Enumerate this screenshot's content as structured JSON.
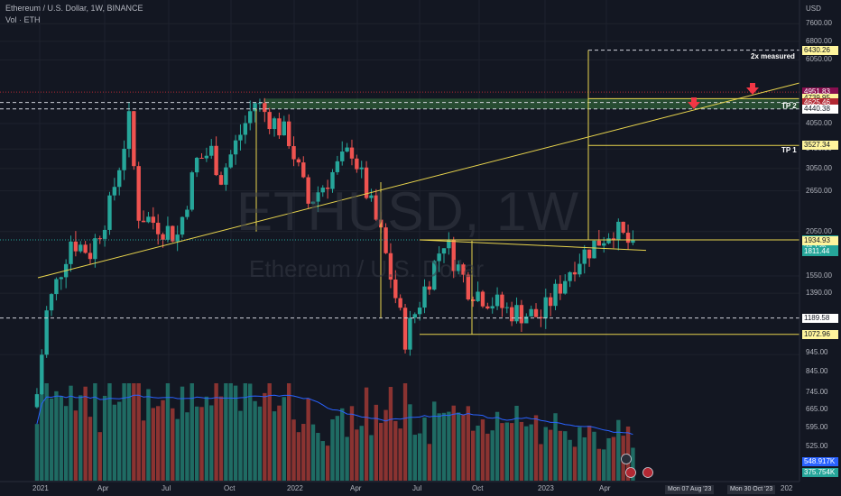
{
  "header": {
    "title": "Ethereum / U.S. Dollar, 1W, BINANCE",
    "volume": "Vol · ETH"
  },
  "watermark": {
    "symbol": "ETHUSD, 1W",
    "name": "Ethereum / U.S. Dollar"
  },
  "axis": {
    "currency": "USD",
    "y_ticks": [
      "7600.00",
      "6800.00",
      "6050.00",
      "4050.00",
      "3450.00",
      "3050.00",
      "2650.00",
      "2050.00",
      "1550.00",
      "1390.00",
      "945.00",
      "845.00",
      "745.00",
      "665.00",
      "595.00",
      "525.00"
    ],
    "x_ticks": [
      "2021",
      "Apr",
      "Jul",
      "Oct",
      "2022",
      "Apr",
      "Jul",
      "Oct",
      "2023",
      "Apr",
      "202"
    ],
    "x_badges": [
      "Mon 07 Aug '23",
      "Mon 30 Oct '23"
    ]
  },
  "annotations": {
    "measured": "2x measured",
    "tp2": "TP 2",
    "tp1": "TP 1"
  },
  "price_labels": [
    {
      "text": "6430.26",
      "bg": "#fff59d",
      "fg": "#131722"
    },
    {
      "text": "4951.83",
      "bg": "#880e4f",
      "fg": "#ffffff"
    },
    {
      "text": "4739.95",
      "bg": "#fff59d",
      "fg": "#131722"
    },
    {
      "text": "4625.46",
      "bg": "#b22833",
      "fg": "#ffffff"
    },
    {
      "text": "4440.38",
      "bg": "#ffffff",
      "fg": "#131722"
    },
    {
      "text": "3527.34",
      "bg": "#fff59d",
      "fg": "#131722"
    },
    {
      "text": "1944.96",
      "bg": "#26a69a",
      "fg": "#ffffff"
    },
    {
      "text": "2d 13h",
      "bg": "#26a69a",
      "fg": "#ffffff"
    },
    {
      "text": "1934.93",
      "bg": "#fff59d",
      "fg": "#131722"
    },
    {
      "text": "1811.44",
      "bg": "#26a69a",
      "fg": "#ffffff"
    },
    {
      "text": "1189.58",
      "bg": "#ffffff",
      "fg": "#131722"
    },
    {
      "text": "1072.96",
      "bg": "#fff59d",
      "fg": "#131722"
    },
    {
      "text": "548.917K",
      "bg": "#2962ff",
      "fg": "#ffffff"
    },
    {
      "text": "375.754K",
      "bg": "#26a69a",
      "fg": "#ffffff"
    }
  ],
  "colors": {
    "background": "#131722",
    "up": "#26a69a",
    "down": "#ef5350",
    "drawing": "#e8d44d",
    "volume_ma": "#2962ff",
    "tp2_zone": "#4caf50"
  },
  "chart_data": {
    "type": "candlestick",
    "title": "Ethereum / U.S. Dollar, 1W, BINANCE",
    "price_scale": "log",
    "ylim": [
      480,
      8400
    ],
    "x": [
      "2021",
      "Apr",
      "Jul",
      "Oct",
      "2022",
      "Apr",
      "Jul",
      "Oct",
      "2023",
      "Apr"
    ],
    "close_path": [
      [
        "2020-12-28",
        737
      ],
      [
        "2021-01-11",
        1230
      ],
      [
        "2021-02-15",
        1950
      ],
      [
        "2021-03-15",
        1800
      ],
      [
        "2021-04-12",
        2400
      ],
      [
        "2021-05-10",
        4100
      ],
      [
        "2021-05-24",
        2300
      ],
      [
        "2021-07-19",
        2000
      ],
      [
        "2021-08-16",
        3200
      ],
      [
        "2021-09-06",
        3400
      ],
      [
        "2021-09-20",
        2900
      ],
      [
        "2021-11-08",
        4650
      ],
      [
        "2021-12-27",
        3700
      ],
      [
        "2022-01-24",
        2450
      ],
      [
        "2022-03-28",
        3450
      ],
      [
        "2022-05-09",
        2000
      ],
      [
        "2022-06-13",
        1050
      ],
      [
        "2022-08-08",
        1950
      ],
      [
        "2022-09-12",
        1450
      ],
      [
        "2022-11-07",
        1250
      ],
      [
        "2022-12-26",
        1200
      ],
      [
        "2023-02-13",
        1700
      ],
      [
        "2023-04-10",
        2100
      ],
      [
        "2023-05-08",
        1850
      ]
    ],
    "last_close": 1944.96,
    "horizontal_levels": [
      4951.83,
      4739.95,
      4625.46,
      4440.38,
      3527.34,
      1934.93,
      1189.58,
      1072.96
    ],
    "measured_target": 6430.26,
    "tp2_zone": [
      4440.38,
      4739.95
    ],
    "volume": {
      "ma_last": 548917,
      "last": 375754
    }
  }
}
